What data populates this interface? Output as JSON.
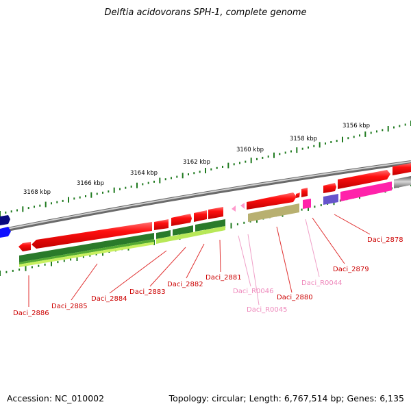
{
  "title": "Delftia acidovorans SPH-1, complete genome",
  "footer": {
    "accession": "Accession: NC_010002",
    "summary": "Topology: circular; Length: 6,767,514 bp; Genes: 6,135"
  },
  "ruler_labels": [
    "3156 kbp",
    "3158 kbp",
    "3160 kbp",
    "3162 kbp",
    "3164 kbp",
    "3166 kbp",
    "3168 kbp"
  ],
  "gene_labels": [
    {
      "text": "Daci_2878",
      "kind": "gene"
    },
    {
      "text": "Daci_2879",
      "kind": "gene"
    },
    {
      "text": "Daci_R0044",
      "kind": "rna"
    },
    {
      "text": "Daci_2880",
      "kind": "gene"
    },
    {
      "text": "Daci_R0045",
      "kind": "rna"
    },
    {
      "text": "Daci_R0046",
      "kind": "rna"
    },
    {
      "text": "Daci_2881",
      "kind": "gene"
    },
    {
      "text": "Daci_2882",
      "kind": "gene"
    },
    {
      "text": "Daci_2883",
      "kind": "gene"
    },
    {
      "text": "Daci_2884",
      "kind": "gene"
    },
    {
      "text": "Daci_2885",
      "kind": "gene"
    },
    {
      "text": "Daci_2886",
      "kind": "gene"
    }
  ],
  "colors": {
    "cds": "#ee0000",
    "rna": "#ff99cc",
    "magenta": "#ff22aa",
    "olive": "#b8b070",
    "purple": "#6655cc",
    "navy": "#0a0a80",
    "blue": "#1010ff",
    "dark_green": "#2a7a2a",
    "mid_green": "#55aa33",
    "light_green": "#c8f060",
    "backbone": "#888888",
    "ruler_green": "#1f7a1f",
    "label_gene": "#cc0000",
    "label_rna": "#ee88bb"
  }
}
